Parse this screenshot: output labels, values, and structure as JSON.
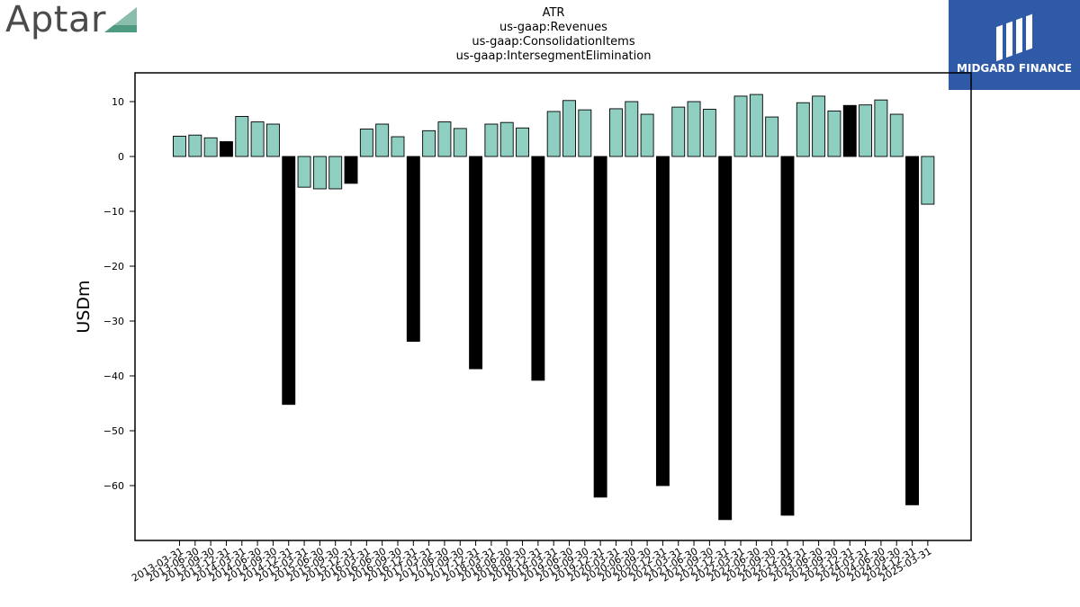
{
  "logos": {
    "left_text": "Aptar",
    "right_text": "MIDGARD FINANCE",
    "brand_color_left": "#4e9a82",
    "brand_color_right": "#2e5aa8"
  },
  "chart_data": {
    "type": "bar",
    "title_lines": [
      "ATR",
      "us-gaap:Revenues",
      "us-gaap:ConsolidationItems",
      "us-gaap:IntersegmentElimination"
    ],
    "xlabel": "",
    "ylabel": "USDm",
    "ylim": [
      -70,
      15
    ],
    "yticks": [
      10,
      0,
      -10,
      -20,
      -30,
      -40,
      -50,
      -60
    ],
    "ytick_labels": [
      "10",
      "0",
      "−10",
      "−20",
      "−30",
      "−40",
      "−50",
      "−60"
    ],
    "grid": false,
    "colors": {
      "quarterly": "#8ecfc2",
      "annual": "#000000"
    },
    "categories": [
      "2013-03-31",
      "2013-06-30",
      "2013-09-30",
      "2013-12-31",
      "2014-03-31",
      "2014-06-30",
      "2014-09-30",
      "2014-12-31",
      "2015-03-31",
      "2015-06-30",
      "2015-09-30",
      "2015-12-31",
      "2016-03-31",
      "2016-06-30",
      "2016-09-30",
      "2016-12-31",
      "2017-03-31",
      "2017-06-30",
      "2017-09-30",
      "2017-12-31",
      "2018-03-31",
      "2018-06-30",
      "2018-09-30",
      "2018-12-31",
      "2019-03-31",
      "2019-06-30",
      "2019-09-30",
      "2019-12-31",
      "2020-03-31",
      "2020-06-30",
      "2020-09-30",
      "2020-12-31",
      "2021-03-31",
      "2021-06-30",
      "2021-09-30",
      "2021-12-31",
      "2022-03-31",
      "2022-06-30",
      "2022-09-30",
      "2022-12-31",
      "2023-03-31",
      "2023-06-30",
      "2023-09-30",
      "2023-12-31",
      "2024-03-31",
      "2024-06-30",
      "2024-09-30",
      "2024-12-31",
      "2025-03-31"
    ],
    "values": [
      3.7,
      3.9,
      3.4,
      2.7,
      7.3,
      6.3,
      5.9,
      -45.2,
      -5.6,
      -5.9,
      -5.9,
      -4.9,
      5.0,
      5.9,
      3.6,
      -33.7,
      4.7,
      6.3,
      5.1,
      -38.7,
      5.9,
      6.2,
      5.2,
      -40.8,
      8.2,
      10.2,
      8.5,
      -62.1,
      8.7,
      10.0,
      7.7,
      -60.0,
      9.0,
      10.0,
      8.6,
      -66.2,
      11.0,
      11.3,
      7.2,
      -65.4,
      9.8,
      11.0,
      8.3,
      9.3,
      9.4,
      10.3,
      7.7,
      -63.5,
      -8.7
    ],
    "annual": [
      false,
      false,
      false,
      true,
      false,
      false,
      false,
      true,
      false,
      false,
      false,
      true,
      false,
      false,
      false,
      true,
      false,
      false,
      false,
      true,
      false,
      false,
      false,
      true,
      false,
      false,
      false,
      true,
      false,
      false,
      false,
      true,
      false,
      false,
      false,
      true,
      false,
      false,
      false,
      true,
      false,
      false,
      false,
      true,
      false,
      false,
      false,
      true,
      false
    ]
  }
}
